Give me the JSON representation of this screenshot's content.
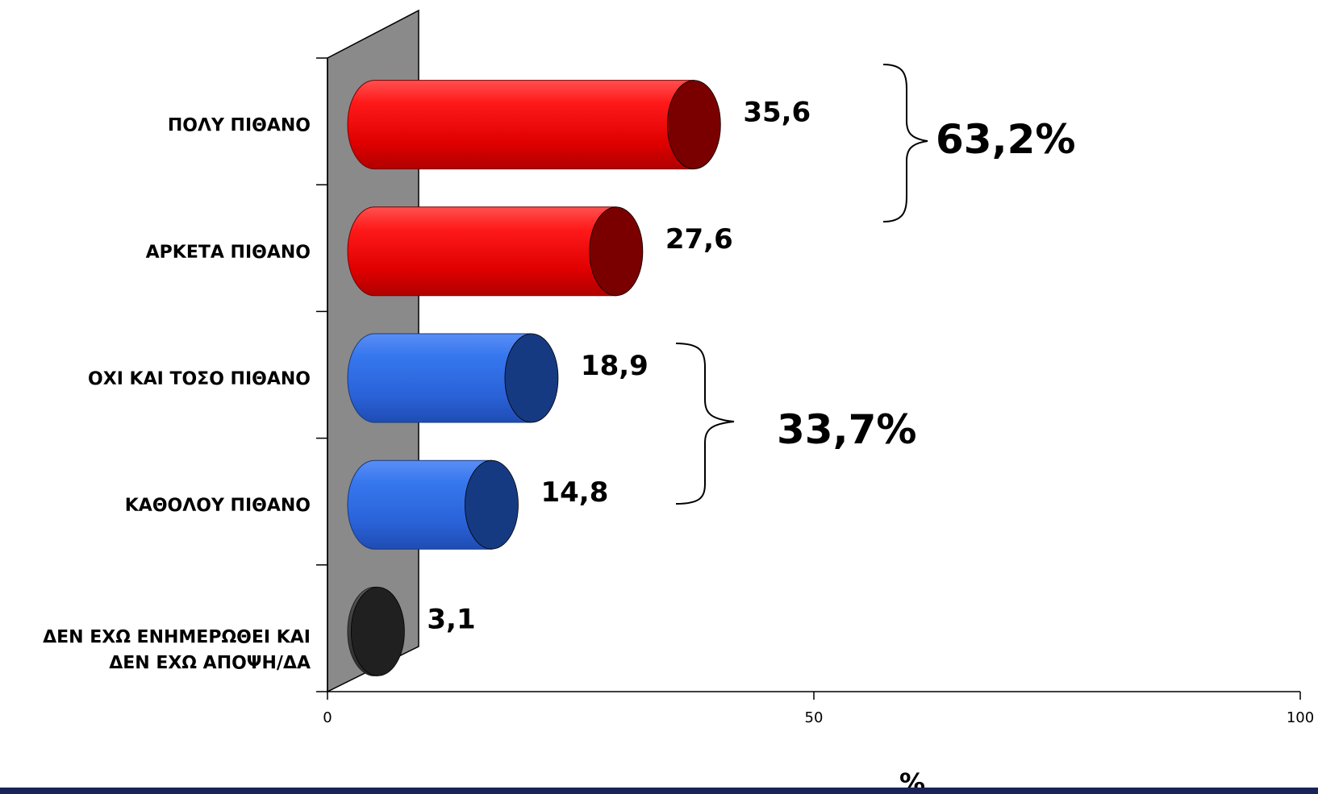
{
  "chart_data": {
    "type": "bar",
    "orientation": "horizontal",
    "categories": [
      "ΠΟΛΥ ΠΙΘΑΝΟ",
      "ΑΡΚΕΤΑ ΠΙΘΑΝΟ",
      "ΟΧΙ ΚΑΙ ΤΟΣΟ ΠΙΘΑΝΟ",
      "ΚΑΘΟΛΟΥ ΠΙΘΑΝΟ",
      "ΔΕΝ ΕΧΩ ΕΝΗΜΕΡΩΘΕΙ ΚΑΙ ΔΕΝ ΕΧΩ ΑΠΟΨΗ/ΔΑ"
    ],
    "category_lines": [
      [
        "ΠΟΛΥ ΠΙΘΑΝΟ"
      ],
      [
        "ΑΡΚΕΤΑ ΠΙΘΑΝΟ"
      ],
      [
        "ΟΧΙ ΚΑΙ ΤΟΣΟ ΠΙΘΑΝΟ"
      ],
      [
        "ΚΑΘΟΛΟΥ ΠΙΘΑΝΟ"
      ],
      [
        "ΔΕΝ ΕΧΩ ΕΝΗΜΕΡΩΘΕΙ ΚΑΙ",
        "ΔΕΝ ΕΧΩ ΑΠΟΨΗ/ΔΑ"
      ]
    ],
    "values": [
      35.6,
      27.6,
      18.9,
      14.8,
      3.1
    ],
    "value_labels": [
      "35,6",
      "27,6",
      "18,9",
      "14,8",
      "3,1"
    ],
    "bar_colors": [
      "#ee0000",
      "#ee0000",
      "#2a6ae6",
      "#2a6ae6",
      "#3a3a3a"
    ],
    "bar_end_colors": [
      "#7a0000",
      "#7a0000",
      "#163a82",
      "#163a82",
      "#202020"
    ],
    "xlim": [
      0,
      100
    ],
    "xticks": [
      0,
      50,
      100
    ],
    "xlabel": "%",
    "group_labels": [
      {
        "label": "63,2%",
        "categories": [
          "ΠΟΛΥ ΠΙΘΑΝΟ",
          "ΑΡΚΕΤΑ ΠΙΘΑΝΟ"
        ]
      },
      {
        "label": "33,7%",
        "categories": [
          "ΟΧΙ ΚΑΙ ΤΟΣΟ ΠΙΘΑΝΟ",
          "ΚΑΘΟΛΟΥ ΠΙΘΑΝΟ"
        ]
      }
    ],
    "style": "3d-cylinder"
  },
  "colors": {
    "wall": "#8a8a8a",
    "footer_bar": "#1a2358"
  }
}
